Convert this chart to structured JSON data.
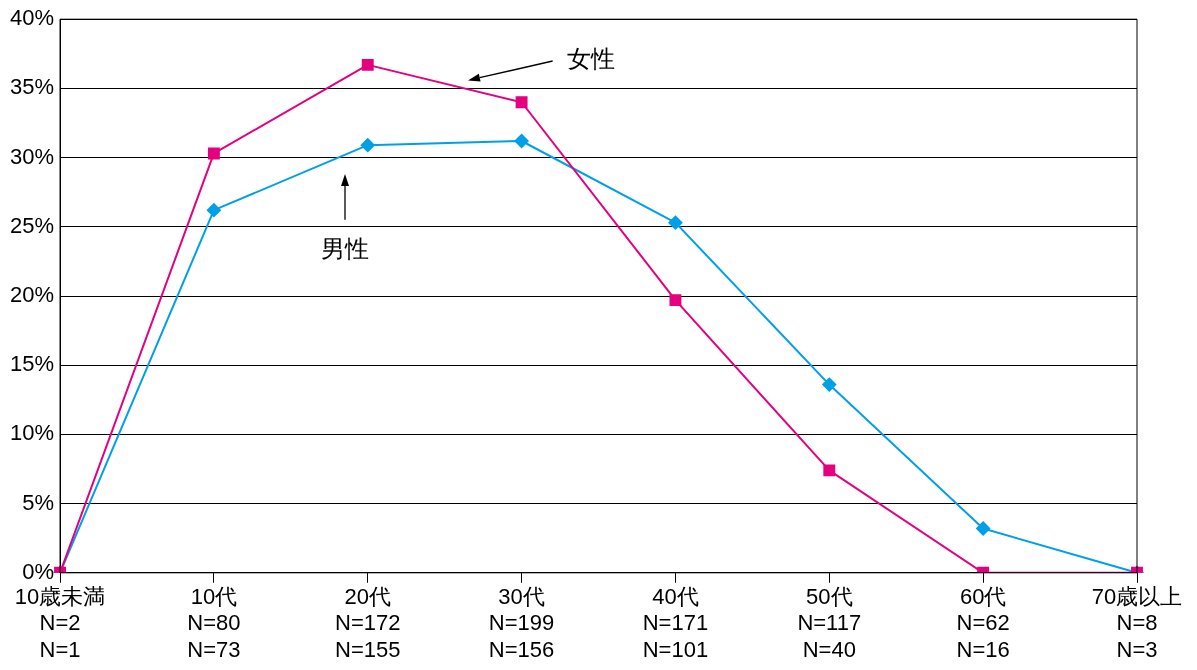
{
  "chart_data": {
    "type": "line",
    "categories": [
      "10歳未満\nN=2\nN=1",
      "10代\nN=80\nN=73",
      "20代\nN=172\nN=155",
      "30代\nN=199\nN=156",
      "40代\nN=171\nN=101",
      "50代\nN=117\nN=40",
      "60代\nN=62\nN=16",
      "70歳以上\nN=8\nN=3"
    ],
    "series": [
      {
        "name": "女性",
        "color": "#e4007f",
        "marker": "square",
        "values": [
          0,
          30.3,
          36.7,
          34.0,
          19.7,
          7.4,
          0,
          0
        ]
      },
      {
        "name": "男性",
        "color": "#00a0e9",
        "marker": "diamond",
        "values": [
          0,
          26.2,
          30.9,
          31.2,
          25.3,
          13.6,
          3.2,
          0
        ]
      }
    ],
    "ylim": [
      0,
      40
    ],
    "yticks": [
      {
        "value": 0,
        "label": "0%"
      },
      {
        "value": 5,
        "label": "5%"
      },
      {
        "value": 10,
        "label": "10%"
      },
      {
        "value": 15,
        "label": "15%"
      },
      {
        "value": 20,
        "label": "20%"
      },
      {
        "value": 25,
        "label": "25%"
      },
      {
        "value": 30,
        "label": "30%"
      },
      {
        "value": 35,
        "label": "35%"
      },
      {
        "value": 40,
        "label": "40%"
      }
    ],
    "grid": "y",
    "legend": false
  }
}
